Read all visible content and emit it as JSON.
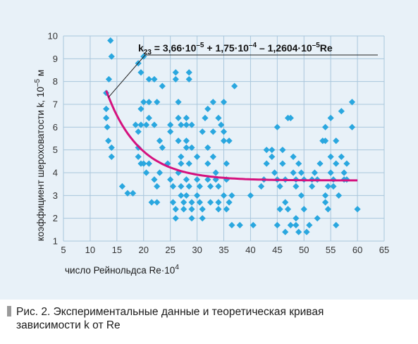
{
  "chart_data": {
    "type": "scatter",
    "xlabel": "число Рейнольдса Re·10",
    "xlabel_exp": "4",
    "ylabel": "коэффициент шероховатости k, 10",
    "ylabel_exp": "–5",
    "ylabel_unit": " м",
    "xlim": [
      5,
      65
    ],
    "ylim": [
      1,
      10
    ],
    "xticks": [
      "5",
      "10",
      "15",
      "20",
      "25",
      "30",
      "35",
      "40",
      "45",
      "50",
      "55",
      "60",
      "65"
    ],
    "yticks": [
      "1",
      "2",
      "3",
      "4",
      "5",
      "6",
      "7",
      "8",
      "9",
      "10"
    ],
    "equation": {
      "k": "k",
      "sub": "23",
      "t1": " = 3,66·10",
      "e1": "–5",
      "t2": " + 1,75·10",
      "e2": "–4",
      "t3": " – 1,2604·10",
      "e3": "–5",
      "t4": "Re"
    },
    "marker_color": "#2aa7df",
    "curve_color": "#d5117e",
    "curve": {
      "a": 3.66,
      "b": 17.5,
      "c": 1.2604,
      "x_start": 13,
      "x_end": 60
    },
    "points": [
      [
        13.8,
        9.8
      ],
      [
        14,
        9.1
      ],
      [
        13.5,
        8.1
      ],
      [
        13,
        7.5
      ],
      [
        13,
        6.8
      ],
      [
        13,
        6.4
      ],
      [
        13.2,
        6.0
      ],
      [
        13.4,
        5.4
      ],
      [
        14,
        5.1
      ],
      [
        14,
        4.7
      ],
      [
        16,
        3.4
      ],
      [
        17,
        3.1
      ],
      [
        18,
        3.1
      ],
      [
        18.5,
        6.1
      ],
      [
        19,
        8.8
      ],
      [
        19.5,
        8.4
      ],
      [
        20,
        9.1
      ],
      [
        19.5,
        6.8
      ],
      [
        19.5,
        6.1
      ],
      [
        19,
        5.8
      ],
      [
        19,
        5.1
      ],
      [
        19,
        4.7
      ],
      [
        19.5,
        4.4
      ],
      [
        20,
        4.4
      ],
      [
        20.5,
        4.0
      ],
      [
        21,
        4.4
      ],
      [
        20.5,
        6.1
      ],
      [
        21,
        6.4
      ],
      [
        22,
        6.1
      ],
      [
        20,
        7.1
      ],
      [
        21,
        7.1
      ],
      [
        21,
        8.1
      ],
      [
        22,
        8.1
      ],
      [
        22.5,
        7.1
      ],
      [
        23.5,
        7.8
      ],
      [
        22,
        3.7
      ],
      [
        22.5,
        3.4
      ],
      [
        23,
        4.0
      ],
      [
        21.5,
        2.7
      ],
      [
        22.5,
        2.7
      ],
      [
        23,
        5.4
      ],
      [
        23.5,
        5.1
      ],
      [
        24.5,
        4.4
      ],
      [
        25,
        5.8
      ],
      [
        25,
        6.1
      ],
      [
        25,
        3.7
      ],
      [
        25.5,
        3.4
      ],
      [
        25.5,
        2.7
      ],
      [
        26,
        2.4
      ],
      [
        26,
        2.0
      ],
      [
        26,
        8.4
      ],
      [
        26,
        8.1
      ],
      [
        26.5,
        6.4
      ],
      [
        26.5,
        7.1
      ],
      [
        27,
        6.1
      ],
      [
        26.5,
        5.4
      ],
      [
        27,
        4.7
      ],
      [
        27,
        4.4
      ],
      [
        26.5,
        4.0
      ],
      [
        27,
        3.4
      ],
      [
        27,
        3.0
      ],
      [
        27.5,
        2.7
      ],
      [
        27.5,
        2.4
      ],
      [
        28,
        6.4
      ],
      [
        28,
        6.1
      ],
      [
        28,
        5.4
      ],
      [
        28,
        5.1
      ],
      [
        28.5,
        4.4
      ],
      [
        28,
        3.7
      ],
      [
        28.5,
        3.4
      ],
      [
        28,
        3.0
      ],
      [
        29,
        2.7
      ],
      [
        29,
        2.4
      ],
      [
        28.5,
        8.1
      ],
      [
        28.5,
        8.4
      ],
      [
        29,
        6.1
      ],
      [
        29,
        5.1
      ],
      [
        29,
        2.0
      ],
      [
        30,
        4.7
      ],
      [
        30,
        3.7
      ],
      [
        30.5,
        3.4
      ],
      [
        30,
        3.0
      ],
      [
        30.5,
        2.7
      ],
      [
        31,
        2.4
      ],
      [
        31,
        2.0
      ],
      [
        31,
        5.8
      ],
      [
        31.5,
        6.4
      ],
      [
        32,
        6.8
      ],
      [
        32,
        5.1
      ],
      [
        32,
        4.4
      ],
      [
        32,
        3.7
      ],
      [
        32.5,
        3.4
      ],
      [
        32.5,
        2.7
      ],
      [
        33,
        7.1
      ],
      [
        33,
        5.8
      ],
      [
        33,
        4.7
      ],
      [
        33.5,
        4.0
      ],
      [
        33.5,
        3.7
      ],
      [
        34,
        3.4
      ],
      [
        34,
        2.7
      ],
      [
        34,
        2.4
      ],
      [
        34,
        6.4
      ],
      [
        34.5,
        6.1
      ],
      [
        35,
        7.1
      ],
      [
        35,
        5.8
      ],
      [
        35,
        5.4
      ],
      [
        35.5,
        4.4
      ],
      [
        35.5,
        3.7
      ],
      [
        35,
        3.0
      ],
      [
        35.5,
        2.4
      ],
      [
        36,
        5.4
      ],
      [
        36,
        2.7
      ],
      [
        36.5,
        3.0
      ],
      [
        37,
        7.8
      ],
      [
        36.5,
        1.7
      ],
      [
        38,
        1.7
      ],
      [
        40,
        3.0
      ],
      [
        40.5,
        1.7
      ],
      [
        42,
        3.4
      ],
      [
        42.5,
        3.7
      ],
      [
        43,
        5.0
      ],
      [
        43,
        4.4
      ],
      [
        44,
        5.0
      ],
      [
        44,
        4.7
      ],
      [
        44.5,
        4.0
      ],
      [
        45,
        6.0
      ],
      [
        45,
        3.7
      ],
      [
        45.5,
        3.4
      ],
      [
        45,
        1.7
      ],
      [
        45.5,
        2.4
      ],
      [
        46,
        5.0
      ],
      [
        46,
        4.4
      ],
      [
        46.5,
        3.7
      ],
      [
        47,
        6.4
      ],
      [
        47.5,
        6.4
      ],
      [
        46.5,
        2.7
      ],
      [
        47,
        2.4
      ],
      [
        46.5,
        1.4
      ],
      [
        47.5,
        1.7
      ],
      [
        48,
        4.7
      ],
      [
        48,
        4.0
      ],
      [
        48.5,
        3.7
      ],
      [
        48.5,
        3.4
      ],
      [
        48.5,
        2.0
      ],
      [
        48.5,
        1.7
      ],
      [
        49,
        1.4
      ],
      [
        49,
        4.4
      ],
      [
        49.5,
        4.0
      ],
      [
        49.5,
        3.0
      ],
      [
        50,
        3.7
      ],
      [
        50,
        2.4
      ],
      [
        50.5,
        1.4
      ],
      [
        51,
        1.7
      ],
      [
        51.5,
        3.7
      ],
      [
        51.5,
        3.4
      ],
      [
        52,
        4.0
      ],
      [
        52.5,
        2.0
      ],
      [
        52.5,
        3.7
      ],
      [
        53,
        4.4
      ],
      [
        53.5,
        5.4
      ],
      [
        54,
        6.0
      ],
      [
        54,
        5.4
      ],
      [
        54,
        3.0
      ],
      [
        54,
        2.7
      ],
      [
        54.5,
        2.4
      ],
      [
        54.5,
        3.4
      ],
      [
        55,
        4.7
      ],
      [
        55,
        6.4
      ],
      [
        55,
        4.0
      ],
      [
        55.5,
        3.7
      ],
      [
        55.5,
        3.4
      ],
      [
        56,
        5.4
      ],
      [
        56,
        4.4
      ],
      [
        56.5,
        3.0
      ],
      [
        57,
        6.7
      ],
      [
        57,
        4.7
      ],
      [
        57.5,
        3.7
      ],
      [
        57.5,
        4.0
      ],
      [
        58,
        3.7
      ],
      [
        58,
        4.4
      ],
      [
        59,
        7.1
      ],
      [
        59,
        6.0
      ],
      [
        60,
        2.4
      ],
      [
        56,
        1.7
      ]
    ]
  },
  "caption": {
    "line1": "Рис. 2.  Экспериментальные данные и теоретическая кривая",
    "line2": "зависимости k от Re"
  }
}
